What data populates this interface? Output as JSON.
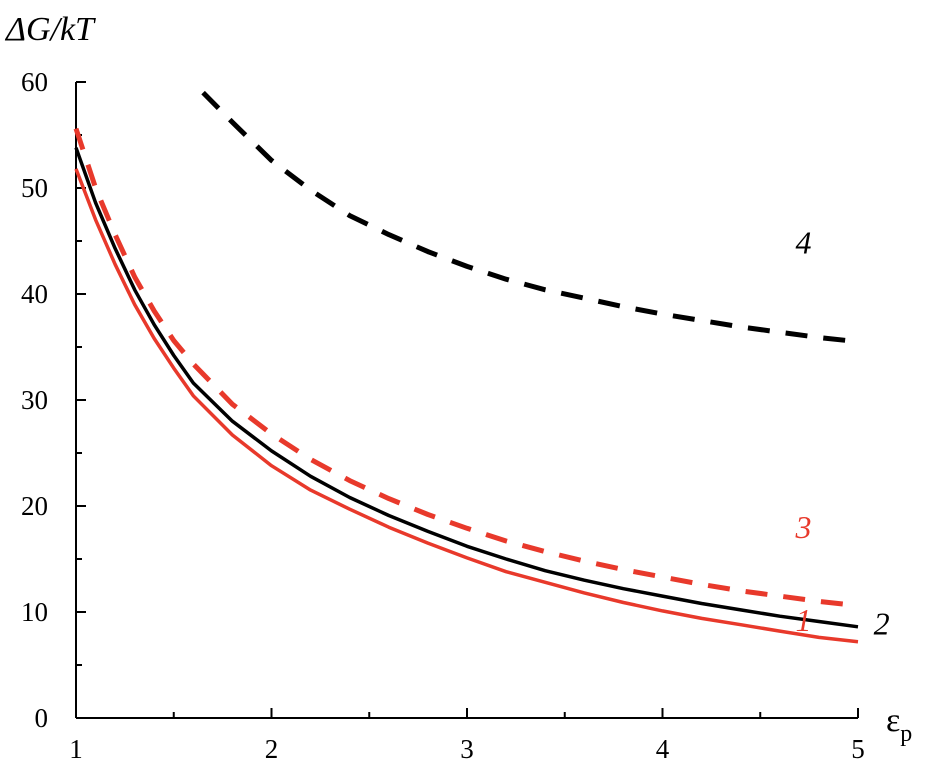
{
  "chart_data": {
    "type": "line",
    "ylabel": "ΔG/kT",
    "xlabel_base": "ε",
    "xlabel_sub": "p",
    "xlim": [
      1,
      5
    ],
    "ylim": [
      0,
      60
    ],
    "x_ticks": [
      1,
      2,
      3,
      4,
      5
    ],
    "y_ticks": [
      0,
      10,
      20,
      30,
      40,
      50,
      60
    ],
    "grid": false,
    "colors": {
      "red": "#e8392b",
      "black": "#000000"
    },
    "series": [
      {
        "name": "1",
        "color": "#e8392b",
        "style": "solid",
        "points": [
          [
            1.0,
            51.8
          ],
          [
            1.1,
            47.0
          ],
          [
            1.2,
            42.8
          ],
          [
            1.3,
            39.0
          ],
          [
            1.4,
            35.8
          ],
          [
            1.5,
            33.0
          ],
          [
            1.6,
            30.4
          ],
          [
            1.8,
            26.7
          ],
          [
            2.0,
            23.8
          ],
          [
            2.2,
            21.5
          ],
          [
            2.4,
            19.7
          ],
          [
            2.6,
            18.0
          ],
          [
            2.8,
            16.5
          ],
          [
            3.0,
            15.1
          ],
          [
            3.2,
            13.8
          ],
          [
            3.4,
            12.8
          ],
          [
            3.6,
            11.8
          ],
          [
            3.8,
            10.9
          ],
          [
            4.0,
            10.1
          ],
          [
            4.2,
            9.4
          ],
          [
            4.4,
            8.8
          ],
          [
            4.6,
            8.2
          ],
          [
            4.8,
            7.6
          ],
          [
            5.0,
            7.2
          ]
        ]
      },
      {
        "name": "2",
        "color": "#000000",
        "style": "solid",
        "points": [
          [
            1.0,
            53.8
          ],
          [
            1.1,
            48.6
          ],
          [
            1.2,
            44.3
          ],
          [
            1.3,
            40.4
          ],
          [
            1.4,
            37.1
          ],
          [
            1.5,
            34.2
          ],
          [
            1.6,
            31.6
          ],
          [
            1.8,
            28.0
          ],
          [
            2.0,
            25.2
          ],
          [
            2.2,
            22.8
          ],
          [
            2.4,
            20.8
          ],
          [
            2.6,
            19.1
          ],
          [
            2.8,
            17.6
          ],
          [
            3.0,
            16.2
          ],
          [
            3.2,
            15.0
          ],
          [
            3.4,
            13.9
          ],
          [
            3.6,
            13.0
          ],
          [
            3.8,
            12.2
          ],
          [
            4.0,
            11.5
          ],
          [
            4.2,
            10.8
          ],
          [
            4.4,
            10.2
          ],
          [
            4.6,
            9.6
          ],
          [
            4.8,
            9.1
          ],
          [
            5.0,
            8.6
          ]
        ]
      },
      {
        "name": "3",
        "color": "#e8392b",
        "style": "dashed",
        "points": [
          [
            1.0,
            55.6
          ],
          [
            1.1,
            50.0
          ],
          [
            1.2,
            45.6
          ],
          [
            1.3,
            41.6
          ],
          [
            1.4,
            38.4
          ],
          [
            1.5,
            35.6
          ],
          [
            1.6,
            33.4
          ],
          [
            1.8,
            29.6
          ],
          [
            2.0,
            26.8
          ],
          [
            2.2,
            24.4
          ],
          [
            2.4,
            22.4
          ],
          [
            2.6,
            20.7
          ],
          [
            2.8,
            19.2
          ],
          [
            3.0,
            17.9
          ],
          [
            3.2,
            16.7
          ],
          [
            3.4,
            15.7
          ],
          [
            3.6,
            14.8
          ],
          [
            3.8,
            14.0
          ],
          [
            4.0,
            13.3
          ],
          [
            4.2,
            12.6
          ],
          [
            4.4,
            12.0
          ],
          [
            4.6,
            11.5
          ],
          [
            4.8,
            11.0
          ],
          [
            5.0,
            10.6
          ]
        ]
      },
      {
        "name": "4",
        "color": "#000000",
        "style": "dashed",
        "points": [
          [
            1.65,
            59.0
          ],
          [
            1.8,
            56.2
          ],
          [
            2.0,
            52.6
          ],
          [
            2.2,
            49.8
          ],
          [
            2.4,
            47.4
          ],
          [
            2.6,
            45.6
          ],
          [
            2.8,
            44.0
          ],
          [
            3.0,
            42.6
          ],
          [
            3.2,
            41.4
          ],
          [
            3.4,
            40.4
          ],
          [
            3.6,
            39.6
          ],
          [
            3.8,
            38.8
          ],
          [
            4.0,
            38.1
          ],
          [
            4.2,
            37.5
          ],
          [
            4.4,
            36.9
          ],
          [
            4.6,
            36.4
          ],
          [
            4.8,
            35.9
          ],
          [
            5.0,
            35.5
          ]
        ]
      }
    ],
    "annotations": [
      {
        "text": "1",
        "x": 4.68,
        "y": 8.2,
        "color": "#e8392b"
      },
      {
        "text": "2",
        "x": 5.08,
        "y": 7.9,
        "color": "#000000"
      },
      {
        "text": "3",
        "x": 4.68,
        "y": 17.0,
        "color": "#e8392b"
      },
      {
        "text": "4",
        "x": 4.68,
        "y": 43.8,
        "color": "#000000"
      }
    ]
  }
}
